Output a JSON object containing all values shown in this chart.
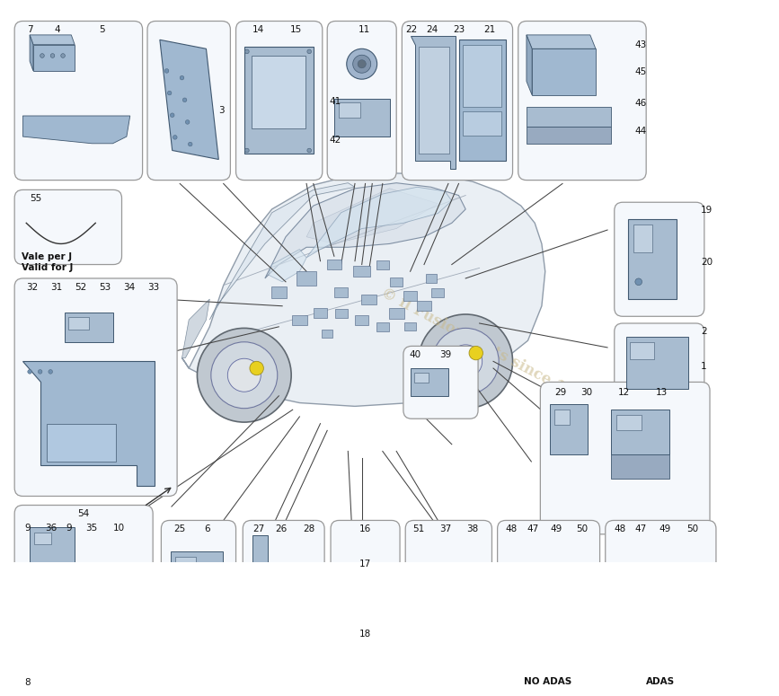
{
  "bg": "#ffffff",
  "box_fill": "#f5f8fc",
  "box_edge": "#999999",
  "ecu_fill": "#b8cce0",
  "ecu_edge": "#405870",
  "line_col": "#444444",
  "text_col": "#111111",
  "watermark": "© il Fusion Parts since 1985",
  "wm_col": "#c8b888",
  "car_body": "#e8edf2",
  "car_edge": "#7080a0",
  "car_glass": "#d0dce8",
  "car_wheel": "#b0b8c0",
  "car_yellow": "#e8d020"
}
